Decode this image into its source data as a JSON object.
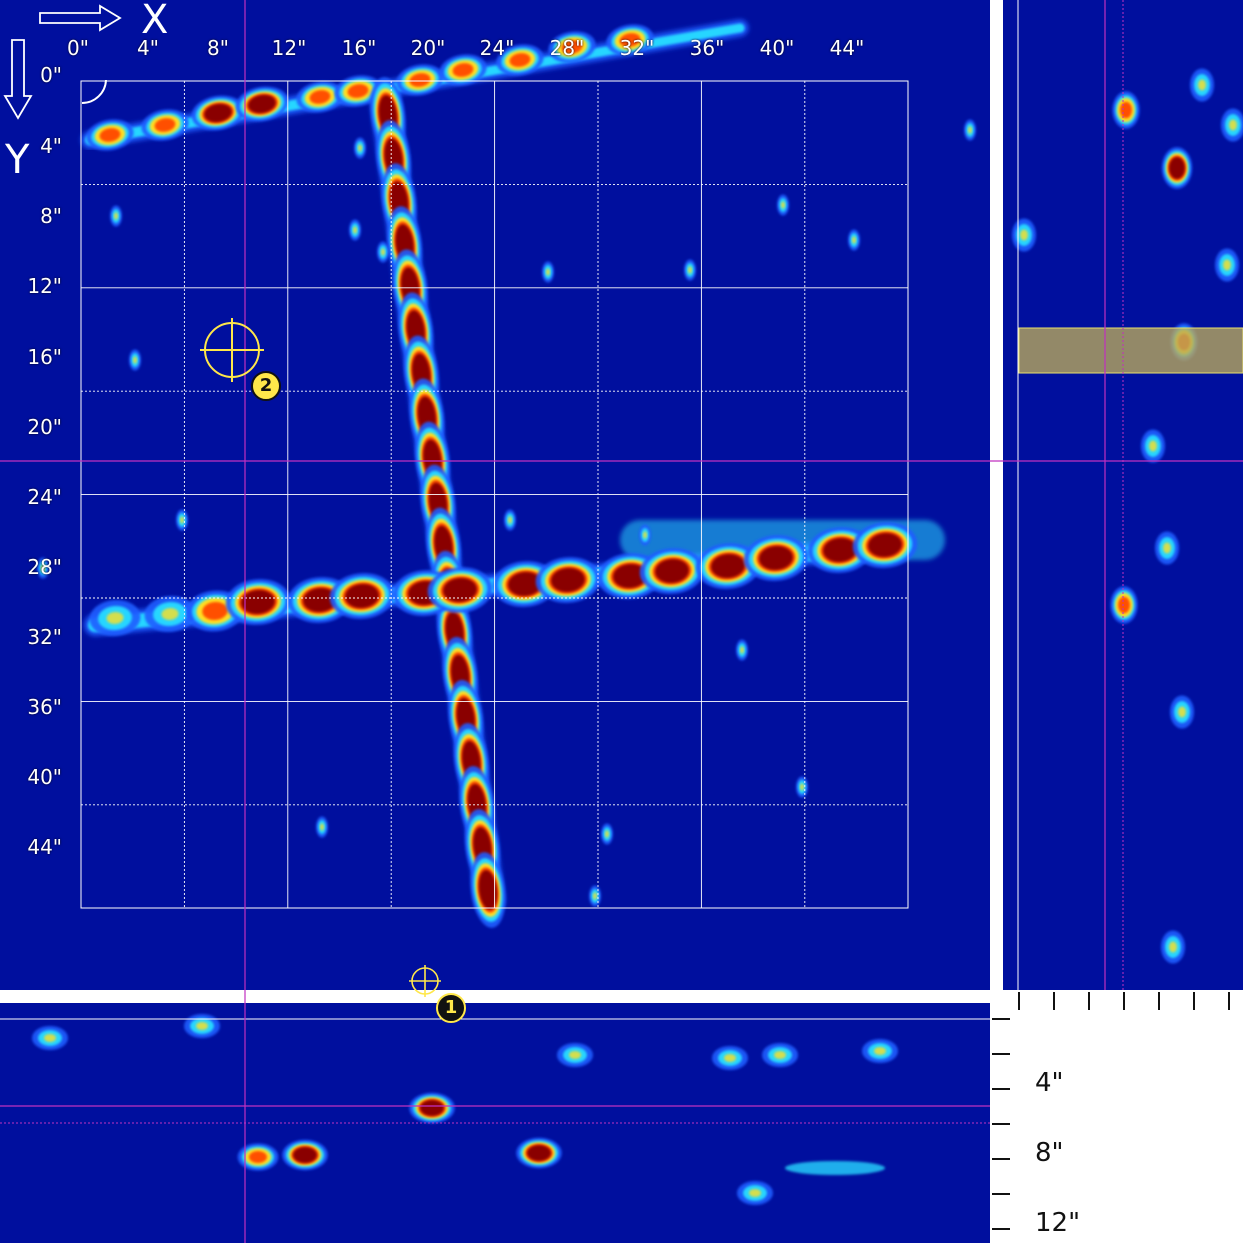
{
  "axes": {
    "x_letter": "X",
    "y_letter": "Y",
    "x_labels": [
      "0\"",
      "4\"",
      "8\"",
      "12\"",
      "16\"",
      "20\"",
      "24\"",
      "28\"",
      "32\"",
      "36\"",
      "40\"",
      "44\""
    ],
    "y_labels": [
      "0\"",
      "4\"",
      "8\"",
      "12\"",
      "16\"",
      "20\"",
      "24\"",
      "28\"",
      "32\"",
      "36\"",
      "40\"",
      "44\""
    ]
  },
  "depth_axis": {
    "labels": [
      "4\"",
      "8\"",
      "12\""
    ]
  },
  "markers": [
    {
      "id": "1"
    },
    {
      "id": "2"
    }
  ],
  "colors": {
    "background": "#000f9e",
    "grid": "#ffffff",
    "cursor_line": "#c030c0",
    "marker": "#ffe74a",
    "highlight_band": "#b8a85a",
    "separator": "#ffffff"
  },
  "colormap": [
    "#000f9e",
    "#1f5cff",
    "#27d6ff",
    "#ffe020",
    "#ff5000",
    "#8a0000"
  ]
}
